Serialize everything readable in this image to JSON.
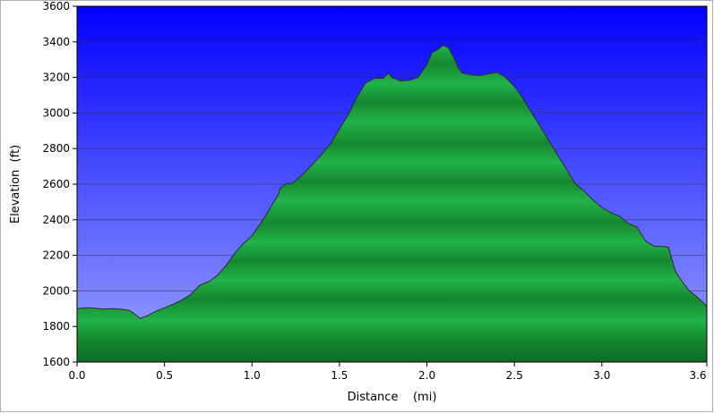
{
  "chart_data": {
    "type": "area",
    "title": "",
    "xlabel": "Distance    (mi)",
    "ylabel": "Elevation  (ft)",
    "xlim": [
      0,
      3.6
    ],
    "ylim": [
      1600,
      3600
    ],
    "x_ticks": [
      0.0,
      0.5,
      1.0,
      1.5,
      2.0,
      2.5,
      3.0,
      3.6
    ],
    "x_tick_labels": [
      "0.0",
      "0.5",
      "1.0",
      "1.5",
      "2.0",
      "2.5",
      "3.0",
      "3.6"
    ],
    "y_ticks": [
      1600,
      1800,
      2000,
      2200,
      2400,
      2600,
      2800,
      3000,
      3200,
      3400,
      3600
    ],
    "y_tick_labels": [
      "1600",
      "1800",
      "2000",
      "2200",
      "2400",
      "2600",
      "2800",
      "3000",
      "3200",
      "3400",
      "3600"
    ],
    "grid": true,
    "legend": "none",
    "colors": {
      "plot_bg_top": "#0000ff",
      "plot_bg_bottom": "#9aa4ff",
      "fill_light": "#22b24c",
      "fill_dark": "#0f6b27",
      "outline": "#2a2a2a",
      "grid": "#333333"
    },
    "series": [
      {
        "x": [
          0.0,
          0.05,
          0.1,
          0.15,
          0.2,
          0.25,
          0.3,
          0.33,
          0.36,
          0.4,
          0.45,
          0.5,
          0.55,
          0.6,
          0.65,
          0.7,
          0.72,
          0.75,
          0.8,
          0.85,
          0.9,
          0.95,
          1.0,
          1.05,
          1.1,
          1.15,
          1.16,
          1.2,
          1.22,
          1.25,
          1.3,
          1.35,
          1.4,
          1.45,
          1.5,
          1.55,
          1.6,
          1.65,
          1.7,
          1.75,
          1.78,
          1.8,
          1.85,
          1.9,
          1.95,
          2.0,
          2.03,
          2.06,
          2.09,
          2.12,
          2.15,
          2.18,
          2.2,
          2.25,
          2.3,
          2.35,
          2.4,
          2.45,
          2.5,
          2.55,
          2.6,
          2.65,
          2.7,
          2.75,
          2.8,
          2.85,
          2.9,
          2.95,
          3.0,
          3.05,
          3.1,
          3.15,
          3.2,
          3.25,
          3.3,
          3.35,
          3.38,
          3.42,
          3.46,
          3.5,
          3.54,
          3.58,
          3.6
        ],
        "y": [
          1900,
          1905,
          1903,
          1898,
          1900,
          1897,
          1890,
          1870,
          1845,
          1860,
          1885,
          1905,
          1925,
          1950,
          1980,
          2030,
          2040,
          2050,
          2085,
          2140,
          2210,
          2265,
          2310,
          2380,
          2460,
          2540,
          2575,
          2605,
          2600,
          2620,
          2665,
          2715,
          2770,
          2830,
          2910,
          2990,
          3090,
          3170,
          3195,
          3195,
          3225,
          3200,
          3180,
          3185,
          3200,
          3275,
          3340,
          3355,
          3380,
          3370,
          3320,
          3255,
          3225,
          3215,
          3210,
          3220,
          3230,
          3200,
          3150,
          3080,
          3000,
          2920,
          2840,
          2760,
          2680,
          2600,
          2560,
          2510,
          2470,
          2440,
          2420,
          2380,
          2360,
          2280,
          2250,
          2250,
          2245,
          2110,
          2050,
          2000,
          1970,
          1935,
          1910
        ]
      }
    ]
  }
}
